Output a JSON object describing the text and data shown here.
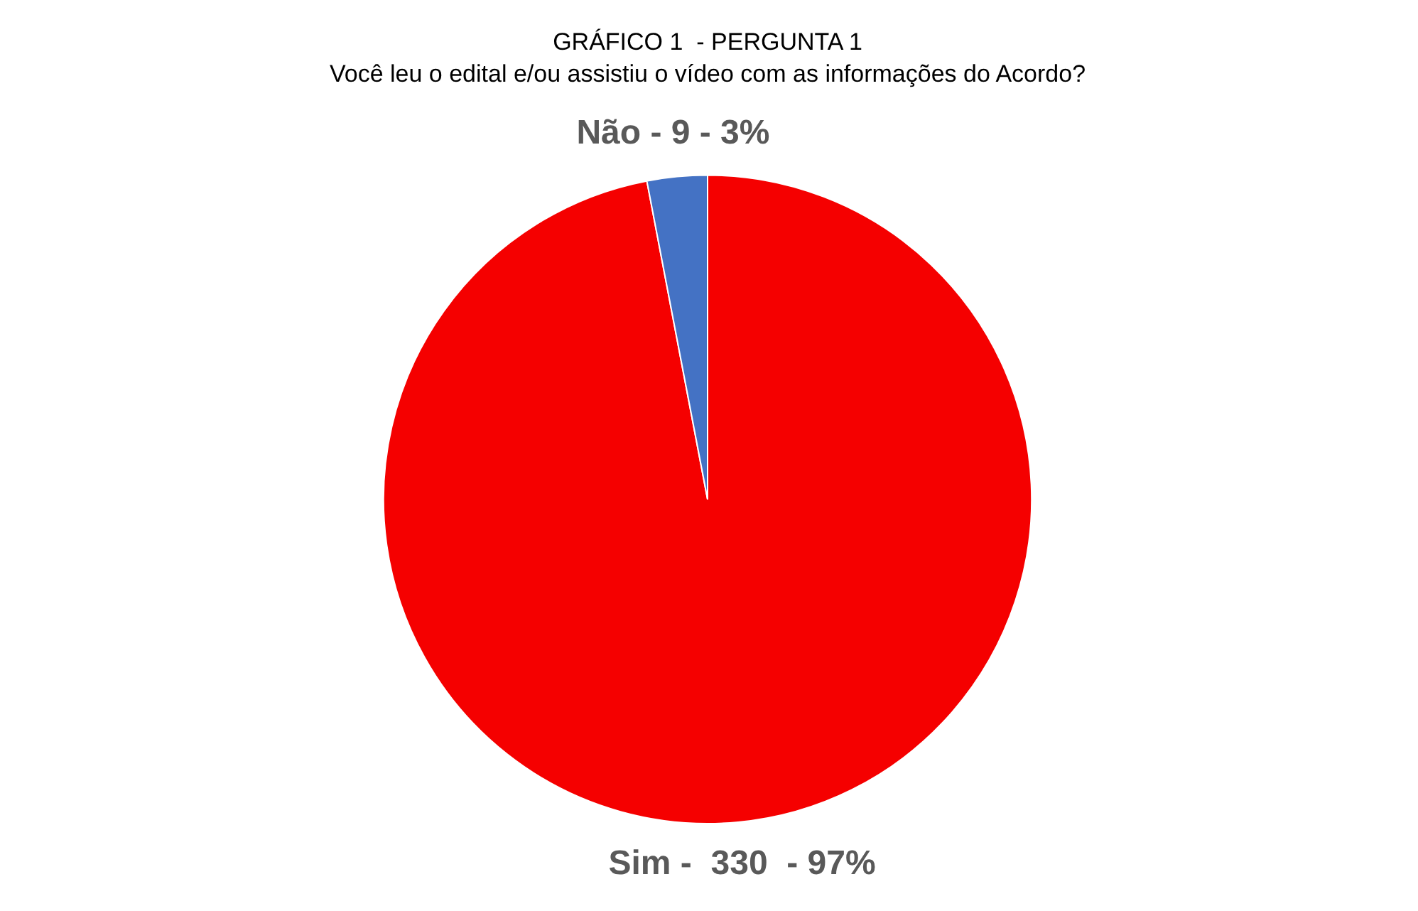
{
  "chart_data": {
    "type": "pie",
    "title": "GRÁFICO 1  - PERGUNTA 1",
    "subtitle": "Você leu o edital e/ou assistiu o vídeo com as informações do Acordo?",
    "categories": [
      "Sim -  330  - 97%",
      "Não - 9 - 3%"
    ],
    "values": [
      97,
      3
    ],
    "colors": [
      "#f50000",
      "#4472c4"
    ],
    "legend": false
  }
}
